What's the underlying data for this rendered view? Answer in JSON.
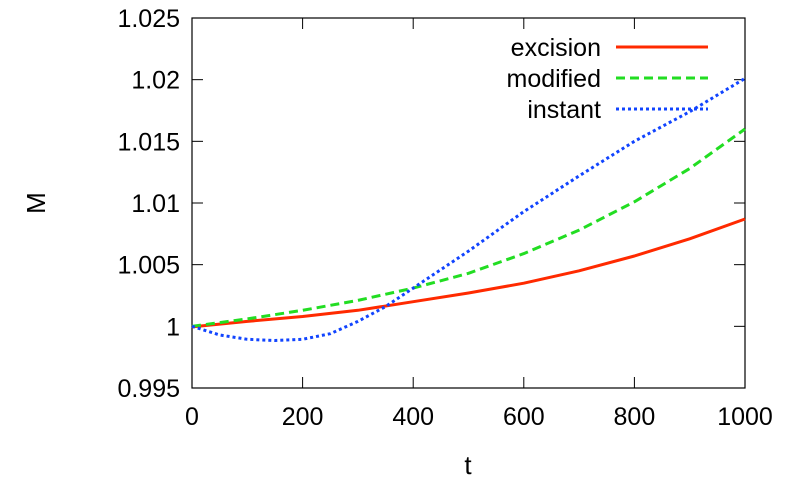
{
  "chart_data": {
    "type": "line",
    "title": "",
    "xlabel": "t",
    "ylabel": "M",
    "xlim": [
      0,
      1000
    ],
    "ylim": [
      0.995,
      1.025
    ],
    "xticks": [
      0,
      200,
      400,
      600,
      800,
      1000
    ],
    "xtick_labels": [
      "0",
      "200",
      "400",
      "600",
      "800",
      "1000"
    ],
    "yticks": [
      0.995,
      1,
      1.005,
      1.01,
      1.015,
      1.02,
      1.025
    ],
    "ytick_labels": [
      "0.995",
      "1",
      "1.005",
      "1.01",
      "1.015",
      "1.02",
      "1.025"
    ],
    "grid": false,
    "legend_position": "top-right",
    "series": [
      {
        "name": "excision",
        "color": "#ff2a00",
        "style": "solid",
        "x": [
          0,
          100,
          200,
          300,
          400,
          500,
          600,
          700,
          800,
          900,
          1000
        ],
        "y": [
          0.99995,
          1.0004,
          1.0008,
          1.0013,
          1.002,
          1.0027,
          1.0035,
          1.0045,
          1.0057,
          1.0071,
          1.0087
        ]
      },
      {
        "name": "modified",
        "color": "#22dd22",
        "style": "dashed",
        "x": [
          0,
          100,
          200,
          300,
          400,
          500,
          600,
          700,
          800,
          900,
          1000
        ],
        "y": [
          1.0,
          1.0006,
          1.0013,
          1.0021,
          1.0031,
          1.0043,
          1.0059,
          1.0078,
          1.0101,
          1.0128,
          1.016
        ]
      },
      {
        "name": "instant",
        "color": "#1144ff",
        "style": "dotted",
        "x": [
          0,
          50,
          100,
          150,
          200,
          250,
          300,
          350,
          400,
          500,
          600,
          700,
          800,
          900,
          1000
        ],
        "y": [
          1.0,
          0.9993,
          0.99895,
          0.99885,
          0.99895,
          0.9994,
          1.0004,
          1.0016,
          1.0031,
          1.0061,
          1.0093,
          1.0122,
          1.015,
          1.0174,
          1.0201
        ]
      }
    ]
  }
}
